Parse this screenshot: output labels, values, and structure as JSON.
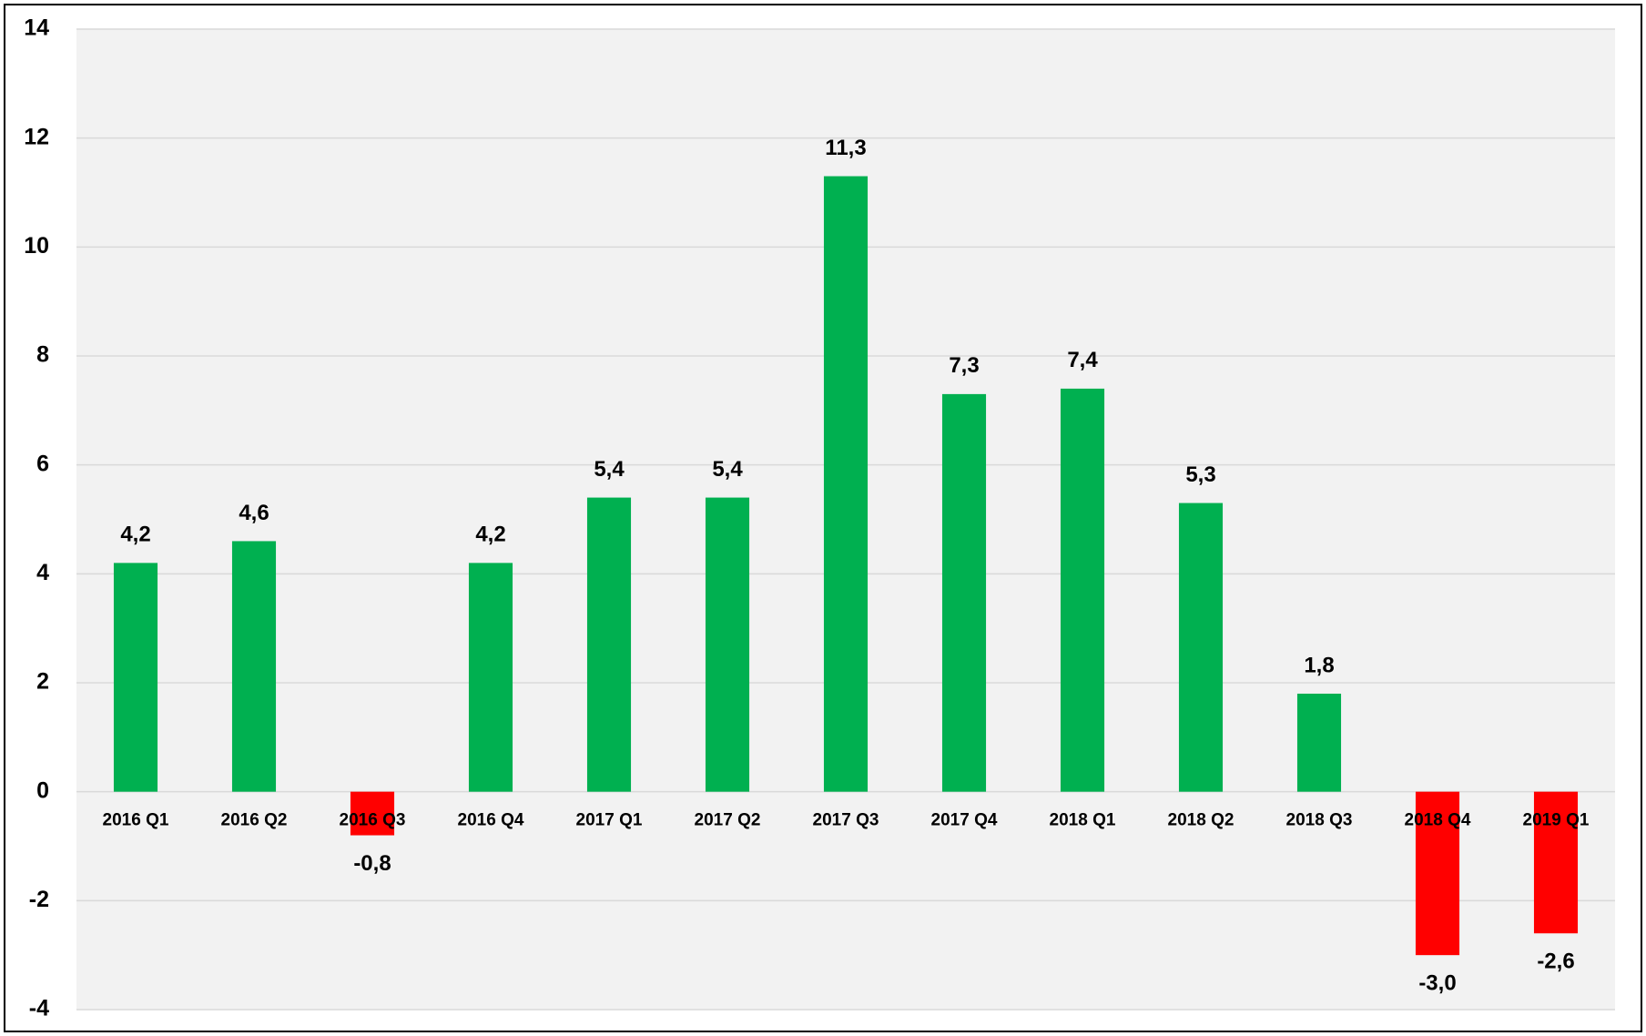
{
  "chart_data": {
    "type": "bar",
    "categories": [
      "2016 Q1",
      "2016 Q2",
      "2016 Q3",
      "2016 Q4",
      "2017 Q1",
      "2017 Q2",
      "2017 Q3",
      "2017 Q4",
      "2018 Q1",
      "2018 Q2",
      "2018 Q3",
      "2018 Q4",
      "2019 Q1"
    ],
    "values": [
      4.2,
      4.6,
      -0.8,
      4.2,
      5.4,
      5.4,
      11.3,
      7.3,
      7.4,
      5.3,
      1.8,
      -3.0,
      -2.6
    ],
    "value_labels": [
      "4,2",
      "4,6",
      "-0,8",
      "4,2",
      "5,4",
      "5,4",
      "11,3",
      "7,3",
      "7,4",
      "5,3",
      "1,8",
      "-3,0",
      "-2,6"
    ],
    "positive_color": "#00b050",
    "negative_color": "#ff0000",
    "ylim": [
      -4,
      14
    ],
    "yticks": [
      -4,
      -2,
      0,
      2,
      4,
      6,
      8,
      10,
      12,
      14
    ],
    "grid": true
  }
}
